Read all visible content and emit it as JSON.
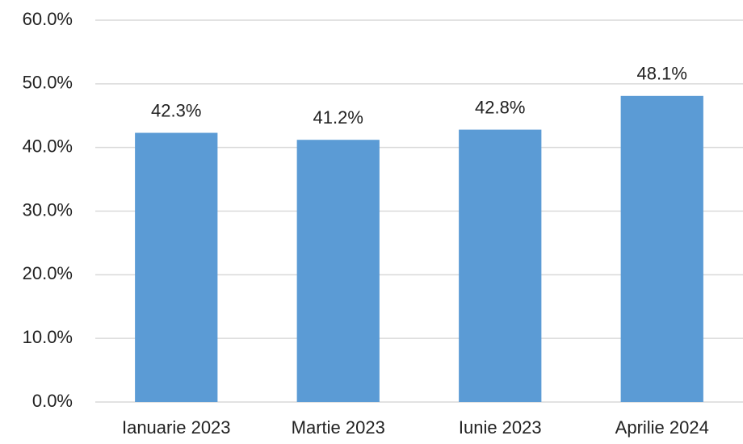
{
  "chart_data": {
    "type": "bar",
    "categories": [
      "Ianuarie 2023",
      "Martie 2023",
      "Iunie 2023",
      "Aprilie 2024"
    ],
    "values": [
      42.3,
      41.2,
      42.8,
      48.1
    ],
    "value_labels": [
      "42.3%",
      "41.2%",
      "42.8%",
      "48.1%"
    ],
    "color": "#5b9bd5",
    "ylim": [
      0,
      60
    ],
    "yticks": [
      {
        "value": 0,
        "label": "0.0%"
      },
      {
        "value": 10,
        "label": "10.0%"
      },
      {
        "value": 20,
        "label": "20.0%"
      },
      {
        "value": 30,
        "label": "30.0%"
      },
      {
        "value": 40,
        "label": "40.0%"
      },
      {
        "value": 50,
        "label": "50.0%"
      },
      {
        "value": 60,
        "label": "60.0%"
      }
    ],
    "grid": true
  }
}
